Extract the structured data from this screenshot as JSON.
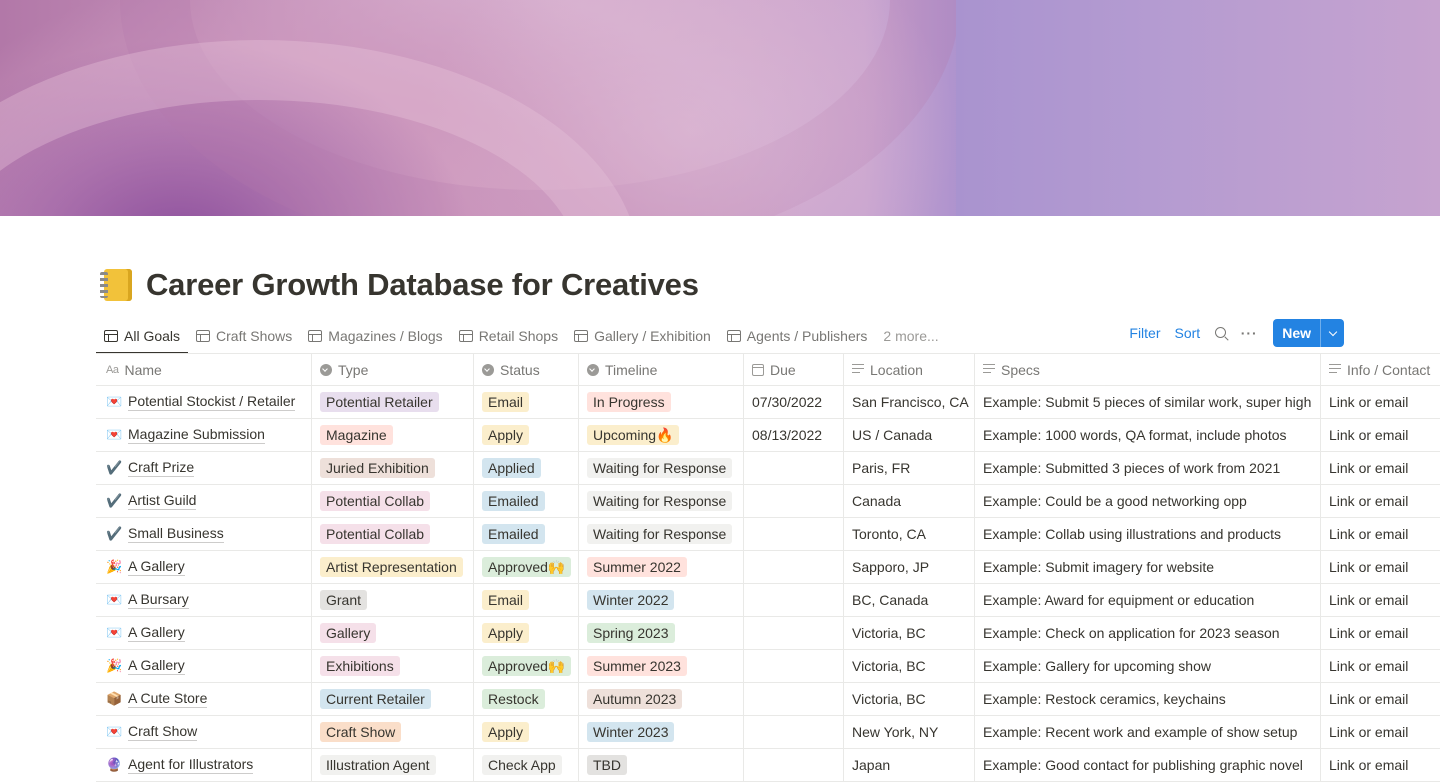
{
  "cover": {
    "description": ""
  },
  "page": {
    "title": "Career Growth Database for Creatives",
    "icon": "notebook-icon"
  },
  "tabs": [
    {
      "label": "All Goals",
      "active": true
    },
    {
      "label": "Craft Shows"
    },
    {
      "label": "Magazines / Blogs"
    },
    {
      "label": "Retail Shops"
    },
    {
      "label": "Gallery / Exhibition"
    },
    {
      "label": "Agents / Publishers"
    }
  ],
  "more_tabs": "2 more...",
  "toolbar": {
    "filter": "Filter",
    "sort": "Sort",
    "new": "New"
  },
  "columns": {
    "name": "Name",
    "type": "Type",
    "status": "Status",
    "timeline": "Timeline",
    "due": "Due",
    "location": "Location",
    "specs": "Specs",
    "info": "Info / Contact"
  },
  "colors": {
    "purple": "#e8deee",
    "pink": "#f5e0e9",
    "brown": "#eee0da",
    "yellow": "#fbeecc",
    "blue": "#d3e5ef",
    "green": "#dbeddb",
    "orange": "#fadec9",
    "gray": "#e3e2e0",
    "red": "#ffe2dd",
    "default": "#f1f1ef"
  },
  "rows": [
    {
      "emoji": "💌",
      "name": "Potential Stockist / Retailer",
      "type": "Potential Retailer",
      "type_color": "purple",
      "status": "Email",
      "status_color": "yellow",
      "timeline": "In Progress",
      "timeline_color": "red",
      "due": "07/30/2022",
      "location": "San Francisco, CA",
      "specs": "Example: Submit 5 pieces of similar work, super high",
      "info": "Link or email"
    },
    {
      "emoji": "💌",
      "name": "Magazine Submission",
      "type": "Magazine",
      "type_color": "red",
      "status": "Apply",
      "status_color": "yellow",
      "timeline": "Upcoming🔥",
      "timeline_color": "yellow",
      "due": "08/13/2022",
      "location": "US / Canada",
      "specs": "Example: 1000 words, QA format, include photos",
      "info": "Link or email"
    },
    {
      "emoji": "✔️",
      "name": "Craft Prize",
      "type": "Juried Exhibition",
      "type_color": "brown",
      "status": "Applied",
      "status_color": "blue",
      "timeline": "Waiting for Response",
      "timeline_color": "default",
      "due": "",
      "location": "Paris, FR",
      "specs": "Example: Submitted 3 pieces of work from 2021",
      "info": "Link or email"
    },
    {
      "emoji": "✔️",
      "name": "Artist Guild",
      "type": "Potential Collab",
      "type_color": "pink",
      "status": "Emailed",
      "status_color": "blue",
      "timeline": "Waiting for Response",
      "timeline_color": "default",
      "due": "",
      "location": "Canada",
      "specs": "Example: Could be a good networking opp",
      "info": "Link or email"
    },
    {
      "emoji": "✔️",
      "name": "Small Business",
      "type": "Potential Collab",
      "type_color": "pink",
      "status": "Emailed",
      "status_color": "blue",
      "timeline": "Waiting for Response",
      "timeline_color": "default",
      "due": "",
      "location": "Toronto, CA",
      "specs": "Example: Collab using illustrations and products",
      "info": "Link or email"
    },
    {
      "emoji": "🎉",
      "name": "A Gallery",
      "type": "Artist Representation",
      "type_color": "yellow",
      "status": "Approved🙌",
      "status_color": "green",
      "timeline": "Summer 2022",
      "timeline_color": "red",
      "due": "",
      "location": "Sapporo, JP",
      "specs": "Example: Submit imagery for website",
      "info": "Link or email"
    },
    {
      "emoji": "💌",
      "name": "A Bursary",
      "type": "Grant",
      "type_color": "gray",
      "status": "Email",
      "status_color": "yellow",
      "timeline": "Winter 2022",
      "timeline_color": "blue",
      "due": "",
      "location": "BC, Canada",
      "specs": "Example: Award for equipment or education",
      "info": "Link or email"
    },
    {
      "emoji": "💌",
      "name": "A Gallery",
      "type": "Gallery",
      "type_color": "pink",
      "status": "Apply",
      "status_color": "yellow",
      "timeline": "Spring 2023",
      "timeline_color": "green",
      "due": "",
      "location": "Victoria, BC",
      "specs": "Example: Check on application for 2023 season",
      "info": "Link or email"
    },
    {
      "emoji": "🎉",
      "name": "A Gallery",
      "type": "Exhibitions",
      "type_color": "pink",
      "status": "Approved🙌",
      "status_color": "green",
      "timeline": "Summer 2023",
      "timeline_color": "red",
      "due": "",
      "location": "Victoria, BC",
      "specs": "Example: Gallery for upcoming show",
      "info": "Link or email"
    },
    {
      "emoji": "📦",
      "name": "A Cute Store",
      "type": "Current Retailer",
      "type_color": "blue",
      "status": "Restock",
      "status_color": "green",
      "timeline": "Autumn 2023",
      "timeline_color": "brown",
      "due": "",
      "location": "Victoria, BC",
      "specs": "Example: Restock ceramics, keychains",
      "info": "Link or email"
    },
    {
      "emoji": "💌",
      "name": "Craft Show",
      "type": "Craft Show",
      "type_color": "orange",
      "status": "Apply",
      "status_color": "yellow",
      "timeline": "Winter 2023",
      "timeline_color": "blue",
      "due": "",
      "location": "New York, NY",
      "specs": "Example: Recent work and example of show setup",
      "info": "Link or email"
    },
    {
      "emoji": "🔮",
      "name": "Agent for Illustrators",
      "type": "Illustration Agent",
      "type_color": "default",
      "status": "Check App",
      "status_color": "default",
      "timeline": "TBD",
      "timeline_color": "gray",
      "due": "",
      "location": "Japan",
      "specs": "Example: Good contact for publishing graphic novel",
      "info": "Link or email"
    }
  ]
}
